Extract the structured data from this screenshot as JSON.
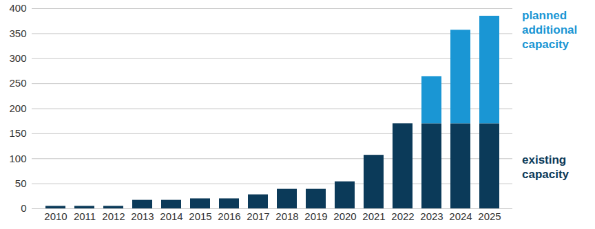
{
  "chart_data": {
    "type": "bar",
    "stacked": true,
    "grid": true,
    "legend": "right",
    "categories": [
      "2010",
      "2011",
      "2012",
      "2013",
      "2014",
      "2015",
      "2016",
      "2017",
      "2018",
      "2019",
      "2020",
      "2021",
      "2022",
      "2023",
      "2024",
      "2025"
    ],
    "series": [
      {
        "name": "existing capacity",
        "color": "#0b3a59",
        "values": [
          5,
          5,
          5,
          17,
          17,
          20,
          20,
          28,
          39,
          39,
          54,
          107,
          170,
          170,
          170,
          170
        ]
      },
      {
        "name": "planned additional capacity",
        "color": "#1a96d4",
        "values": [
          0,
          0,
          0,
          0,
          0,
          0,
          0,
          0,
          0,
          0,
          0,
          0,
          0,
          94,
          187,
          215
        ]
      }
    ],
    "ylim": [
      0,
      400
    ],
    "yticks": [
      0,
      50,
      100,
      150,
      200,
      250,
      300,
      350,
      400
    ]
  }
}
